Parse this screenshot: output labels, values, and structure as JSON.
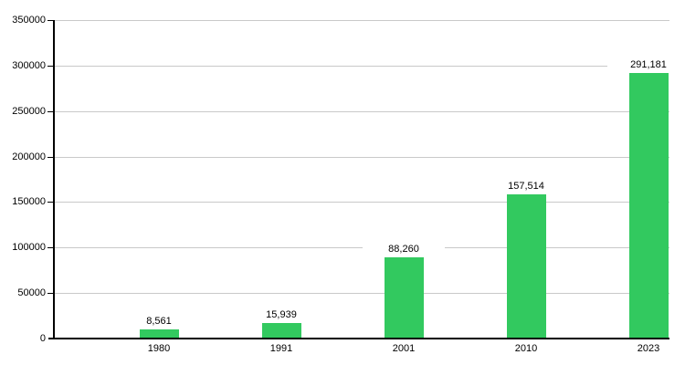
{
  "chart_data": {
    "type": "bar",
    "title": "",
    "xlabel": "",
    "ylabel": "",
    "categories": [
      "1980",
      "1991",
      "2001",
      "2010",
      "2023"
    ],
    "values": [
      8561,
      15939,
      88260,
      157514,
      291181
    ],
    "value_labels": [
      "8,561",
      "15,939",
      "88,260",
      "157,514",
      "291,181"
    ],
    "ylim": [
      0,
      350000
    ],
    "y_tick_step": 50000,
    "y_tick_labels": [
      "0",
      "50000",
      "100000",
      "150000",
      "200000",
      "250000",
      "300000",
      "350000"
    ],
    "grid": true,
    "legend": "none",
    "colors": {
      "bar": "#32C95F",
      "gridline": "#C9C9C9",
      "axis": "#000000",
      "text": "#000000",
      "background": "#FFFFFF"
    }
  }
}
